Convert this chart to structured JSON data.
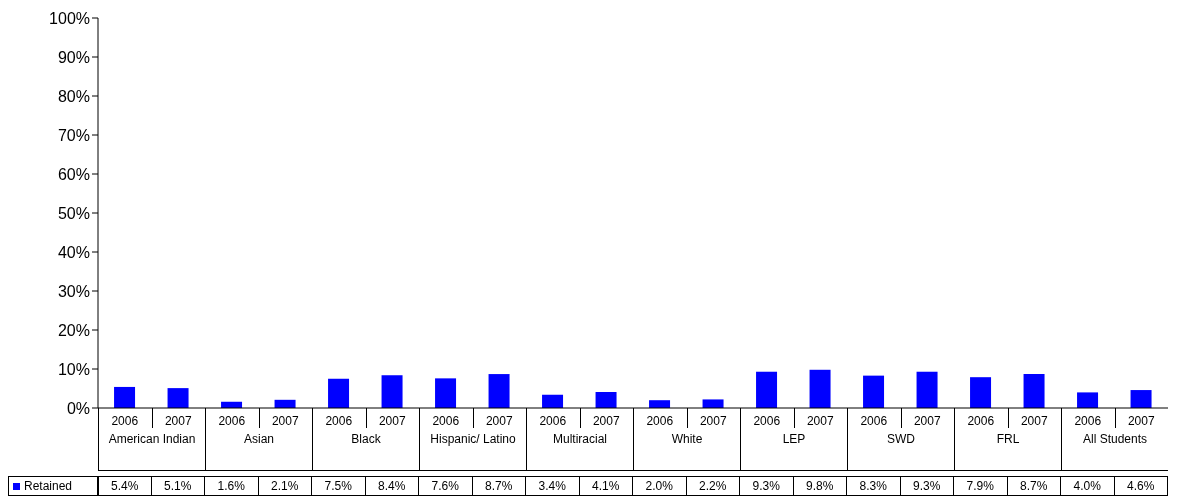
{
  "chart_data": {
    "type": "bar",
    "categories": [
      "2006",
      "2007",
      "2006",
      "2007",
      "2006",
      "2007",
      "2006",
      "2007",
      "2006",
      "2007",
      "2006",
      "2007",
      "2006",
      "2007",
      "2006",
      "2007",
      "2006",
      "2007",
      "2006",
      "2007"
    ],
    "annotations": [
      "American Indian",
      "Asian",
      "Black",
      "Hispanic/ Latino",
      "Multiracial",
      "White",
      "LEP",
      "SWD",
      "FRL",
      "All Students"
    ],
    "series": [
      {
        "name": "Retained",
        "color": "#0000ff",
        "values": [
          5.4,
          5.1,
          1.6,
          2.1,
          7.5,
          8.4,
          7.6,
          8.7,
          3.4,
          4.1,
          2.0,
          2.2,
          9.3,
          9.8,
          8.3,
          9.3,
          7.9,
          8.7,
          4.0,
          4.6
        ],
        "value_labels": [
          "5.4%",
          "5.1%",
          "1.6%",
          "2.1%",
          "7.5%",
          "8.4%",
          "7.6%",
          "8.7%",
          "3.4%",
          "4.1%",
          "2.0%",
          "2.2%",
          "9.3%",
          "9.8%",
          "8.3%",
          "9.3%",
          "7.9%",
          "8.7%",
          "4.0%",
          "4.6%"
        ]
      }
    ],
    "ylim": [
      0,
      100
    ],
    "yticks": [
      {
        "value": 0,
        "label": "0%"
      },
      {
        "value": 10,
        "label": "10%"
      },
      {
        "value": 20,
        "label": "20%"
      },
      {
        "value": 30,
        "label": "30%"
      },
      {
        "value": 40,
        "label": "40%"
      },
      {
        "value": 50,
        "label": "50%"
      },
      {
        "value": 60,
        "label": "60%"
      },
      {
        "value": 70,
        "label": "70%"
      },
      {
        "value": 80,
        "label": "80%"
      },
      {
        "value": 90,
        "label": "90%"
      },
      {
        "value": 100,
        "label": "100%"
      }
    ],
    "legend": "bottom"
  }
}
